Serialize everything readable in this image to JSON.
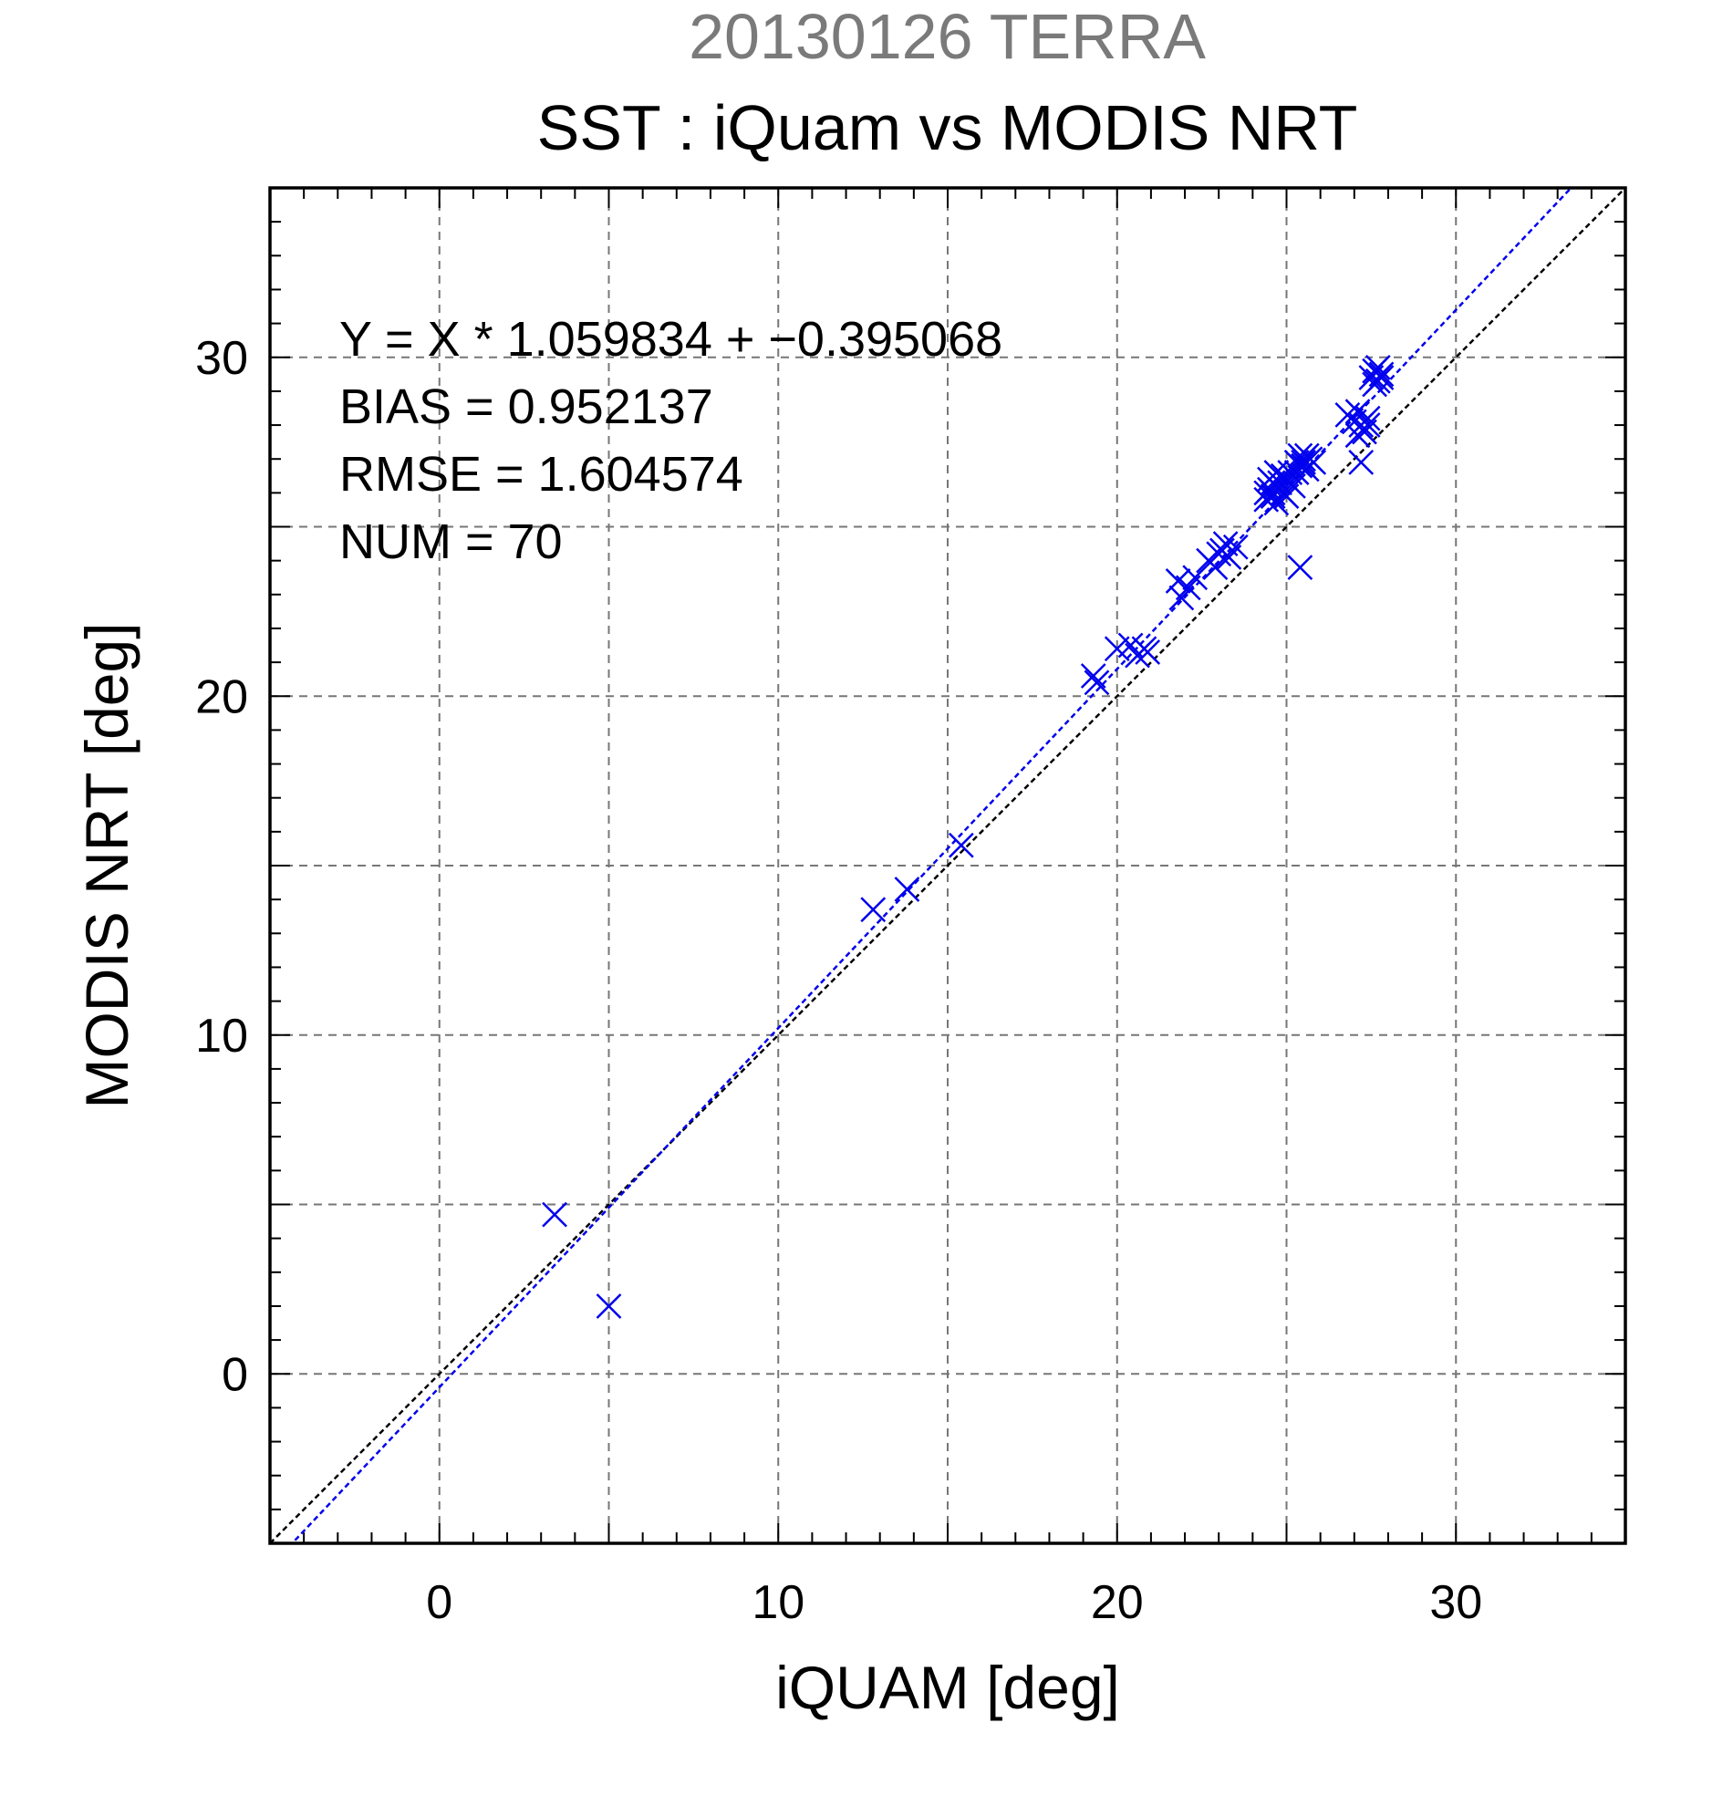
{
  "header": {
    "date_title": "20130126 TERRA",
    "chart_title": "SST : iQuam vs MODIS NRT"
  },
  "colors": {
    "points": "#0000ee",
    "fit_line": "#0000ee",
    "identity_line": "#000000",
    "grid": "#777777",
    "date_title": "#7a7a7a"
  },
  "chart_data": {
    "type": "scatter",
    "title": "SST : iQuam vs MODIS NRT",
    "subtitle": "20130126 TERRA",
    "xlabel": "iQUAM [deg]",
    "ylabel": "MODIS NRT [deg]",
    "xlim": [
      -5,
      35
    ],
    "ylim": [
      -5,
      35
    ],
    "x_ticks": [
      0,
      10,
      20,
      30
    ],
    "y_ticks": [
      0,
      10,
      20,
      30
    ],
    "x_tick_labels": [
      "0",
      "10",
      "20",
      "30"
    ],
    "y_tick_labels": [
      "0",
      "10",
      "20",
      "30"
    ],
    "grid": true,
    "grid_step": 5,
    "marker": "x",
    "annotations": [
      "Y = X * 1.059834 + −0.395068",
      "BIAS = 0.952137",
      "RMSE = 1.604574",
      "NUM = 70"
    ],
    "fit": {
      "slope": 1.059834,
      "intercept": -0.395068
    },
    "identity_line": true,
    "points": [
      [
        3.4,
        4.7
      ],
      [
        5.0,
        2.0
      ],
      [
        12.8,
        13.7
      ],
      [
        13.8,
        14.3
      ],
      [
        15.4,
        15.6
      ],
      [
        19.3,
        20.6
      ],
      [
        19.4,
        20.4
      ],
      [
        20.0,
        21.4
      ],
      [
        20.4,
        21.5
      ],
      [
        20.6,
        21.2
      ],
      [
        20.8,
        21.4
      ],
      [
        20.9,
        21.3
      ],
      [
        21.8,
        23.4
      ],
      [
        21.9,
        22.9
      ],
      [
        22.1,
        23.2
      ],
      [
        22.3,
        23.5
      ],
      [
        22.7,
        24.0
      ],
      [
        22.9,
        23.8
      ],
      [
        23.1,
        24.3
      ],
      [
        23.2,
        24.5
      ],
      [
        23.3,
        24.1
      ],
      [
        23.5,
        24.4
      ],
      [
        24.4,
        25.8
      ],
      [
        24.5,
        26.1
      ],
      [
        24.5,
        26.4
      ],
      [
        24.6,
        25.9
      ],
      [
        24.6,
        26.0
      ],
      [
        24.7,
        26.2
      ],
      [
        24.7,
        25.7
      ],
      [
        24.8,
        26.3
      ],
      [
        24.8,
        26.1
      ],
      [
        24.9,
        26.0
      ],
      [
        24.9,
        26.5
      ],
      [
        25.0,
        25.9
      ],
      [
        25.0,
        26.4
      ],
      [
        25.1,
        26.6
      ],
      [
        25.2,
        26.2
      ],
      [
        25.3,
        26.9
      ],
      [
        25.3,
        26.6
      ],
      [
        25.4,
        27.1
      ],
      [
        25.4,
        26.8
      ],
      [
        25.5,
        26.9
      ],
      [
        25.5,
        27.0
      ],
      [
        25.6,
        26.7
      ],
      [
        25.6,
        27.1
      ],
      [
        25.7,
        27.0
      ],
      [
        25.4,
        23.8
      ],
      [
        26.8,
        28.3
      ],
      [
        27.0,
        28.1
      ],
      [
        27.1,
        28.4
      ],
      [
        27.1,
        27.7
      ],
      [
        27.2,
        28.0
      ],
      [
        27.2,
        26.9
      ],
      [
        27.3,
        27.8
      ],
      [
        27.4,
        28.2
      ],
      [
        27.4,
        28.0
      ],
      [
        27.5,
        29.4
      ],
      [
        27.6,
        29.6
      ],
      [
        27.7,
        29.3
      ],
      [
        27.8,
        29.5
      ],
      [
        27.7,
        29.7
      ],
      [
        24.6,
        26.3
      ],
      [
        24.4,
        26.0
      ],
      [
        25.1,
        26.3
      ],
      [
        25.5,
        26.8
      ],
      [
        27.6,
        29.2
      ],
      [
        27.8,
        29.4
      ],
      [
        23.0,
        24.2
      ],
      [
        24.7,
        26.6
      ],
      [
        25.8,
        26.9
      ]
    ]
  }
}
